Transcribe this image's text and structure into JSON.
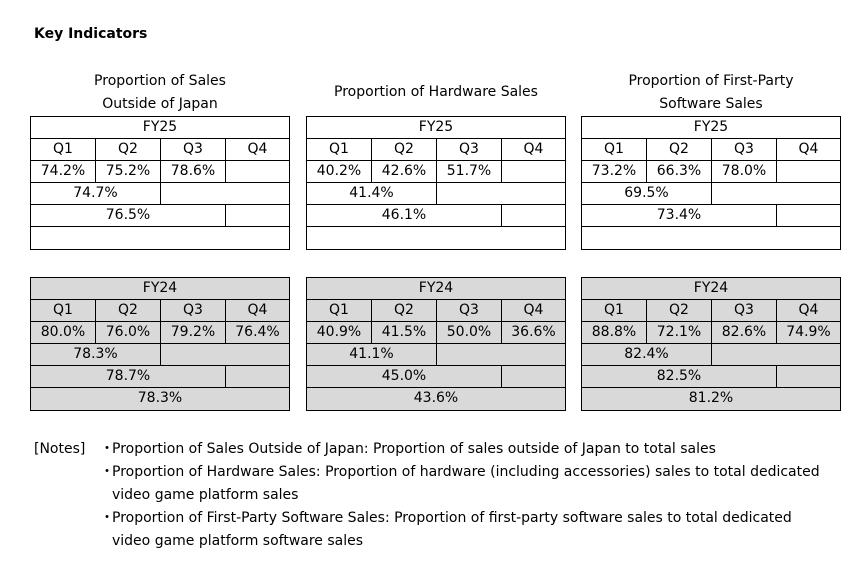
{
  "page_title": "Key Indicators",
  "panels": [
    {
      "title_line1": "Proportion of Sales",
      "title_line2": "Outside of Japan",
      "fy25": {
        "label": "FY25",
        "quarters": [
          "Q1",
          "Q2",
          "Q3",
          "Q4"
        ],
        "values": [
          "74.2%",
          "75.2%",
          "78.6%",
          ""
        ],
        "h1": "74.7%",
        "q1_q3": "76.5%",
        "full_year": ""
      },
      "fy24": {
        "label": "FY24",
        "quarters": [
          "Q1",
          "Q2",
          "Q3",
          "Q4"
        ],
        "values": [
          "80.0%",
          "76.0%",
          "79.2%",
          "76.4%"
        ],
        "h1": "78.3%",
        "q1_q3": "78.7%",
        "full_year": "78.3%"
      }
    },
    {
      "title_line1": "Proportion of Hardware Sales",
      "title_line2": "",
      "fy25": {
        "label": "FY25",
        "quarters": [
          "Q1",
          "Q2",
          "Q3",
          "Q4"
        ],
        "values": [
          "40.2%",
          "42.6%",
          "51.7%",
          ""
        ],
        "h1": "41.4%",
        "q1_q3": "46.1%",
        "full_year": ""
      },
      "fy24": {
        "label": "FY24",
        "quarters": [
          "Q1",
          "Q2",
          "Q3",
          "Q4"
        ],
        "values": [
          "40.9%",
          "41.5%",
          "50.0%",
          "36.6%"
        ],
        "h1": "41.1%",
        "q1_q3": "45.0%",
        "full_year": "43.6%"
      }
    },
    {
      "title_line1": "Proportion of First-Party",
      "title_line2": "Software Sales",
      "fy25": {
        "label": "FY25",
        "quarters": [
          "Q1",
          "Q2",
          "Q3",
          "Q4"
        ],
        "values": [
          "73.2%",
          "66.3%",
          "78.0%",
          ""
        ],
        "h1": "69.5%",
        "q1_q3": "73.4%",
        "full_year": ""
      },
      "fy24": {
        "label": "FY24",
        "quarters": [
          "Q1",
          "Q2",
          "Q3",
          "Q4"
        ],
        "values": [
          "88.8%",
          "72.1%",
          "82.6%",
          "74.9%"
        ],
        "h1": "82.4%",
        "q1_q3": "82.5%",
        "full_year": "81.2%"
      }
    }
  ],
  "notes": {
    "label": "[Notes]",
    "bullet": "・",
    "items": [
      "Proportion of Sales Outside of Japan: Proportion of sales outside of Japan to total sales",
      "Proportion of Hardware Sales: Proportion of hardware (including accessories) sales to total dedicated video game platform sales",
      "Proportion of First-Party Software Sales: Proportion of first-party software sales to total dedicated video game platform software sales"
    ]
  }
}
